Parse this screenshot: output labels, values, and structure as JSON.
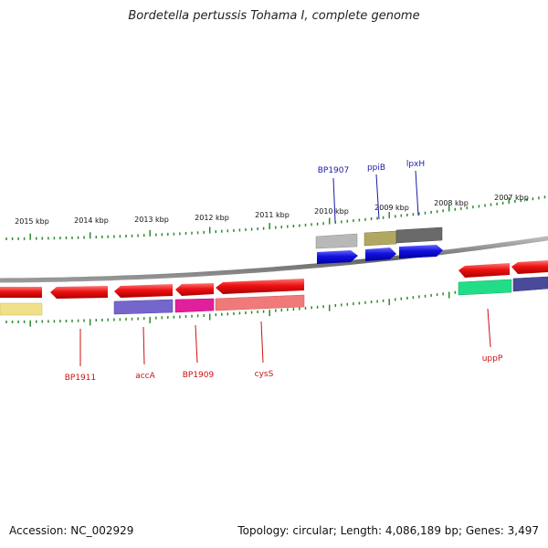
{
  "title": "Bordetella pertussis Tohama I, complete genome",
  "footer": {
    "accession": "Accession: NC_002929",
    "summary": "Topology: circular; Length: 4,086,189 bp; Genes: 3,497"
  },
  "kbp_ticks": [
    "2015 kbp",
    "2014 kbp",
    "2013 kbp",
    "2012 kbp",
    "2011 kbp",
    "2010 kbp",
    "2009 kbp",
    "2008 kbp",
    "2007 kbp"
  ],
  "gene_labels": {
    "forward": [
      "BP1907",
      "ppiB",
      "lpxH"
    ],
    "reverse": [
      "BP1911",
      "accA",
      "BP1909",
      "cysS",
      "uppP"
    ]
  },
  "colors": {
    "forward_label": "#1a1aaa",
    "reverse_label": "#cc1111",
    "backbone": "#7a7a7a",
    "tick": "#2a8a2a",
    "cds_red": "#ee1111",
    "cds_blue": "#1111dd"
  }
}
